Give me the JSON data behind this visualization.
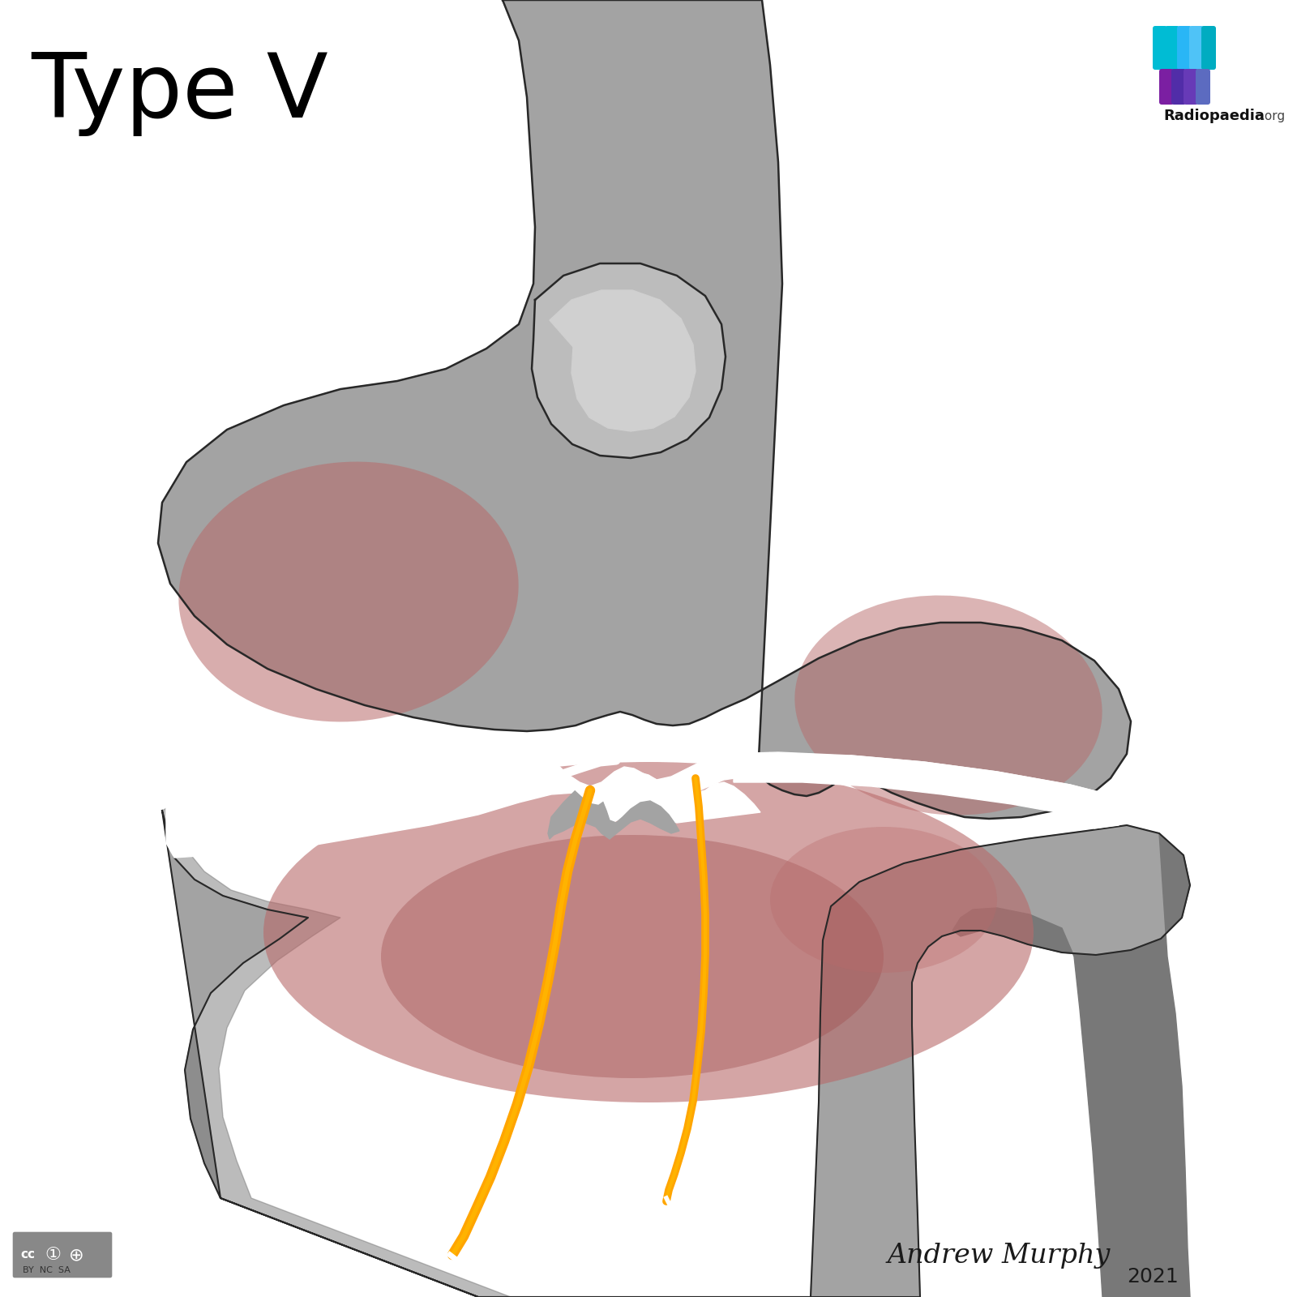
{
  "title": "Type V",
  "title_fontsize": 80,
  "background_color": "#ffffff",
  "bone_base": "#a0a0a0",
  "bone_light": "#b8b8b8",
  "bone_dark": "#787878",
  "bone_shadow": "#686868",
  "red_blush": "#b86868",
  "fracture_orange": "#FFA500",
  "outline_color": "#2a2a2a",
  "white_col": "#ffffff",
  "radiopaedia_text": "Radiopaedia",
  "author_text": "Andrew Murphy",
  "year_text": "2021"
}
